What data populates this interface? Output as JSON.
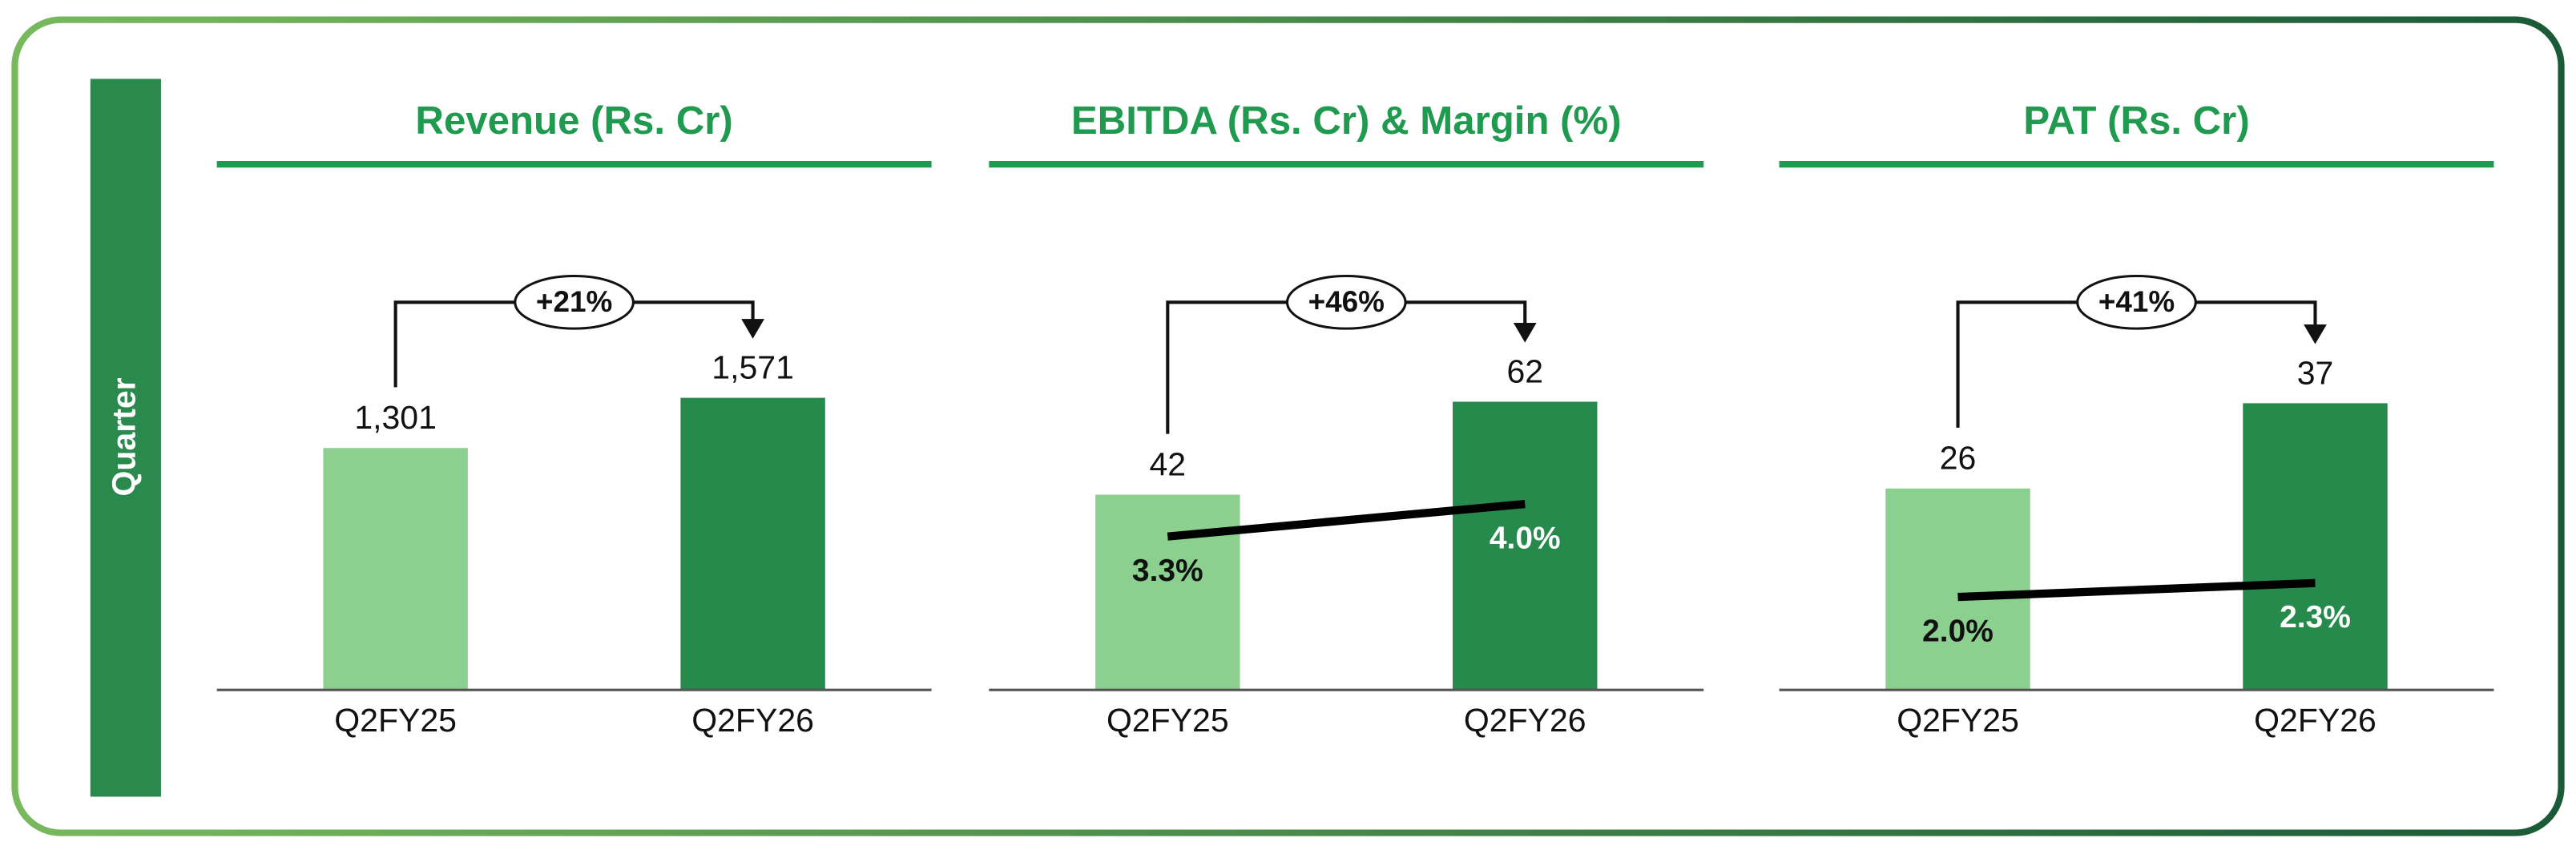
{
  "side_label": "Quarter",
  "chart_data": [
    {
      "type": "bar",
      "title": "Revenue (Rs. Cr)",
      "categories": [
        "Q2FY25",
        "Q2FY26"
      ],
      "values": [
        1301,
        1571
      ],
      "value_labels": [
        "1,301",
        "1,571"
      ],
      "colors": [
        "#8bd08e",
        "#258a4c"
      ],
      "ylim": [
        0,
        2500
      ],
      "growth": "+21%"
    },
    {
      "type": "bar",
      "title": "EBITDA (Rs. Cr) & Margin (%)",
      "categories": [
        "Q2FY25",
        "Q2FY26"
      ],
      "values": [
        42,
        62
      ],
      "colors": [
        "#8bd08e",
        "#258a4c"
      ],
      "ylim": [
        0,
        100
      ],
      "growth": "+46%",
      "margin": {
        "values": [
          3.3,
          4.0
        ],
        "value_labels": [
          "3.3%",
          "4.0%"
        ],
        "axis": "y2",
        "color": "#000000"
      },
      "y2lim": [
        0,
        10
      ]
    },
    {
      "type": "bar",
      "title": "PAT (Rs. Cr)",
      "categories": [
        "Q2FY25",
        "Q2FY26"
      ],
      "values": [
        26,
        37
      ],
      "colors": [
        "#8bd08e",
        "#258a4c"
      ],
      "ylim": [
        0,
        60
      ],
      "growth": "+41%",
      "margin": {
        "values": [
          2.0,
          2.3
        ],
        "value_labels": [
          "2.0%",
          "2.3%"
        ],
        "axis": "y2",
        "color": "#000000"
      },
      "y2lim": [
        0,
        10
      ]
    }
  ]
}
